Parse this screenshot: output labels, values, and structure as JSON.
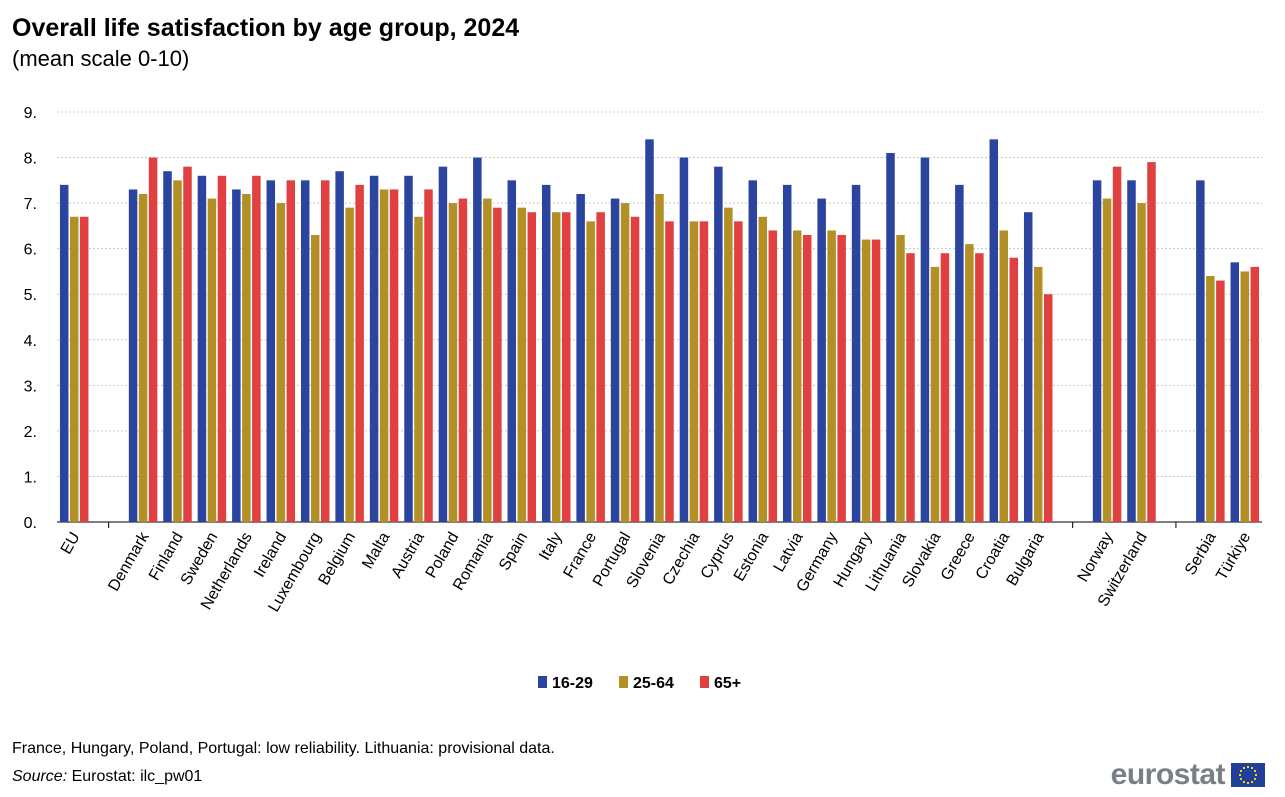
{
  "chart_data": {
    "type": "bar",
    "title": "Overall life satisfaction by age group, 2024",
    "subtitle": "(mean scale 0-10)",
    "ylim": [
      0,
      9
    ],
    "yticks": [
      "0.",
      "1.",
      "2.",
      "3.",
      "4.",
      "5.",
      "6.",
      "7.",
      "8.",
      "9."
    ],
    "grid": true,
    "legend_placement": "bottom",
    "categories": [
      "EU",
      "Denmark",
      "Finland",
      "Sweden",
      "Netherlands",
      "Ireland",
      "Luxembourg",
      "Belgium",
      "Malta",
      "Austria",
      "Poland",
      "Romania",
      "Spain",
      "Italy",
      "France",
      "Portugal",
      "Slovenia",
      "Czechia",
      "Cyprus",
      "Estonia",
      "Latvia",
      "Germany",
      "Hungary",
      "Lithuania",
      "Slovakia",
      "Greece",
      "Croatia",
      "Bulgaria",
      "Norway",
      "Switzerland",
      "Serbia",
      "Türkiye"
    ],
    "groups_break_after": [
      "EU",
      "Bulgaria",
      "Switzerland"
    ],
    "series": [
      {
        "name": "16-29",
        "color": "#2a44a0",
        "values": [
          7.4,
          7.3,
          7.7,
          7.6,
          7.3,
          7.5,
          7.5,
          7.7,
          7.6,
          7.6,
          7.8,
          8.0,
          7.5,
          7.4,
          7.2,
          7.1,
          8.4,
          8.0,
          7.8,
          7.5,
          7.4,
          7.1,
          7.4,
          8.1,
          8.0,
          7.4,
          8.4,
          6.8,
          7.5,
          7.5,
          7.5,
          5.7
        ]
      },
      {
        "name": "25-64",
        "color": "#b39025",
        "values": [
          6.7,
          7.2,
          7.5,
          7.1,
          7.2,
          7.0,
          6.3,
          6.9,
          7.3,
          6.7,
          7.0,
          7.1,
          6.9,
          6.8,
          6.6,
          7.0,
          7.2,
          6.6,
          6.9,
          6.7,
          6.4,
          6.4,
          6.2,
          6.3,
          5.6,
          6.1,
          6.4,
          5.6,
          7.1,
          7.0,
          5.4,
          5.5
        ]
      },
      {
        "name": "65+",
        "color": "#e04040",
        "values": [
          6.7,
          8.0,
          7.8,
          7.6,
          7.6,
          7.5,
          7.5,
          7.4,
          7.3,
          7.3,
          7.1,
          6.9,
          6.8,
          6.8,
          6.8,
          6.7,
          6.6,
          6.6,
          6.6,
          6.4,
          6.3,
          6.3,
          6.2,
          5.9,
          5.9,
          5.9,
          5.8,
          5.0,
          7.8,
          7.9,
          5.3,
          5.6
        ]
      }
    ]
  },
  "footer": {
    "note": "France, Hungary, Poland, Portugal: low reliability. Lithuania: provisional data.",
    "source_label": "Source:",
    "source_text": " Eurostat: ilc_pw01",
    "logo": "eurostat"
  }
}
